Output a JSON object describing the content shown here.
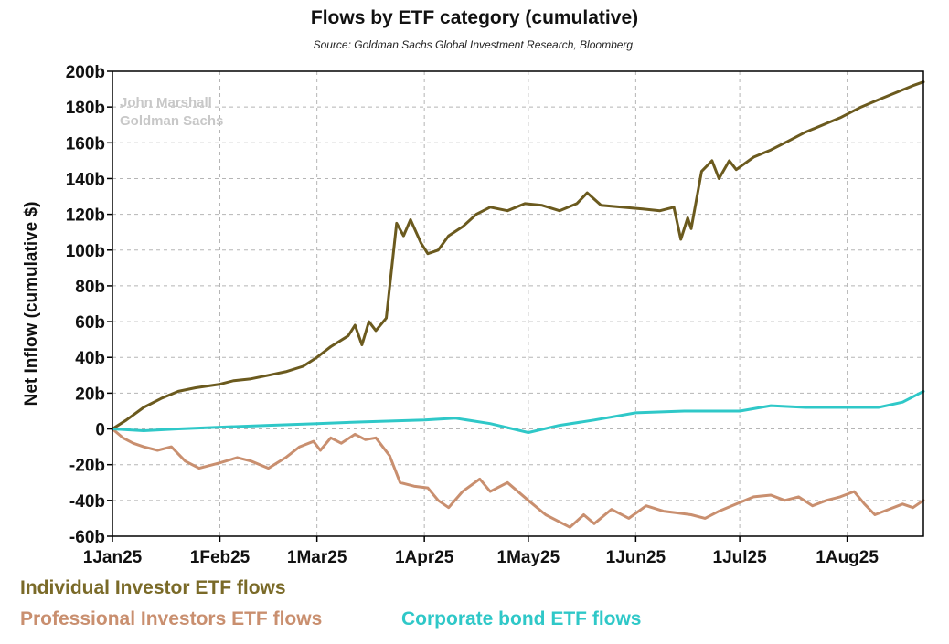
{
  "chart_data": {
    "type": "line",
    "title": "Flows by ETF category (cumulative)",
    "subtitle": "Source: Goldman Sachs Global Investment Research, Bloomberg.",
    "ylabel": "Net Inflow (cumulative $)",
    "xlabel": "",
    "watermark": [
      "John Marshall",
      "Goldman Sachs"
    ],
    "x_ticks": [
      "1Jan25",
      "1Feb25",
      "1Mar25",
      "1Apr25",
      "1May25",
      "1Jun25",
      "1Jul25",
      "1Aug25"
    ],
    "y_ticks": [
      "200b",
      "180b",
      "160b",
      "140b",
      "120b",
      "100b",
      "80b",
      "60b",
      "40b",
      "20b",
      "0",
      "-20b",
      "-40b",
      "-60b"
    ],
    "ylim": [
      -60,
      200
    ],
    "y_units": "billions of $",
    "xlim": [
      "2025-01-01",
      "2025-08-23"
    ],
    "grid": true,
    "legend_position": "bottom",
    "series": [
      {
        "name": "Individual Investor ETF flows",
        "color": "#6b5a1e",
        "points": [
          [
            "2025-01-01",
            0
          ],
          [
            "2025-01-05",
            5
          ],
          [
            "2025-01-10",
            12
          ],
          [
            "2025-01-15",
            17
          ],
          [
            "2025-01-20",
            21
          ],
          [
            "2025-01-25",
            23
          ],
          [
            "2025-02-01",
            25
          ],
          [
            "2025-02-05",
            27
          ],
          [
            "2025-02-10",
            28
          ],
          [
            "2025-02-15",
            30
          ],
          [
            "2025-02-20",
            32
          ],
          [
            "2025-02-25",
            35
          ],
          [
            "2025-03-01",
            40
          ],
          [
            "2025-03-05",
            46
          ],
          [
            "2025-03-10",
            52
          ],
          [
            "2025-03-12",
            58
          ],
          [
            "2025-03-14",
            47
          ],
          [
            "2025-03-16",
            60
          ],
          [
            "2025-03-18",
            55
          ],
          [
            "2025-03-21",
            62
          ],
          [
            "2025-03-24",
            115
          ],
          [
            "2025-03-26",
            108
          ],
          [
            "2025-03-28",
            117
          ],
          [
            "2025-03-31",
            104
          ],
          [
            "2025-04-02",
            98
          ],
          [
            "2025-04-05",
            100
          ],
          [
            "2025-04-08",
            108
          ],
          [
            "2025-04-12",
            113
          ],
          [
            "2025-04-16",
            120
          ],
          [
            "2025-04-20",
            124
          ],
          [
            "2025-04-25",
            122
          ],
          [
            "2025-04-30",
            126
          ],
          [
            "2025-05-05",
            125
          ],
          [
            "2025-05-10",
            122
          ],
          [
            "2025-05-15",
            126
          ],
          [
            "2025-05-18",
            132
          ],
          [
            "2025-05-22",
            125
          ],
          [
            "2025-05-28",
            124
          ],
          [
            "2025-06-03",
            123
          ],
          [
            "2025-06-08",
            122
          ],
          [
            "2025-06-12",
            124
          ],
          [
            "2025-06-14",
            106
          ],
          [
            "2025-06-16",
            118
          ],
          [
            "2025-06-17",
            112
          ],
          [
            "2025-06-20",
            144
          ],
          [
            "2025-06-23",
            150
          ],
          [
            "2025-06-25",
            140
          ],
          [
            "2025-06-28",
            150
          ],
          [
            "2025-06-30",
            145
          ],
          [
            "2025-07-05",
            152
          ],
          [
            "2025-07-10",
            156
          ],
          [
            "2025-07-15",
            161
          ],
          [
            "2025-07-20",
            166
          ],
          [
            "2025-07-25",
            170
          ],
          [
            "2025-07-30",
            174
          ],
          [
            "2025-08-05",
            180
          ],
          [
            "2025-08-10",
            184
          ],
          [
            "2025-08-15",
            188
          ],
          [
            "2025-08-20",
            192
          ],
          [
            "2025-08-23",
            194
          ]
        ]
      },
      {
        "name": "Professional Investors ETF flows",
        "color": "#c98f6f",
        "points": [
          [
            "2025-01-01",
            0
          ],
          [
            "2025-01-04",
            -5
          ],
          [
            "2025-01-07",
            -8
          ],
          [
            "2025-01-10",
            -10
          ],
          [
            "2025-01-14",
            -12
          ],
          [
            "2025-01-18",
            -10
          ],
          [
            "2025-01-22",
            -18
          ],
          [
            "2025-01-26",
            -22
          ],
          [
            "2025-02-01",
            -19
          ],
          [
            "2025-02-06",
            -16
          ],
          [
            "2025-02-10",
            -18
          ],
          [
            "2025-02-15",
            -22
          ],
          [
            "2025-02-20",
            -16
          ],
          [
            "2025-02-24",
            -10
          ],
          [
            "2025-02-28",
            -7
          ],
          [
            "2025-03-02",
            -12
          ],
          [
            "2025-03-05",
            -5
          ],
          [
            "2025-03-08",
            -8
          ],
          [
            "2025-03-12",
            -3
          ],
          [
            "2025-03-15",
            -6
          ],
          [
            "2025-03-18",
            -5
          ],
          [
            "2025-03-22",
            -15
          ],
          [
            "2025-03-25",
            -30
          ],
          [
            "2025-03-29",
            -32
          ],
          [
            "2025-04-02",
            -33
          ],
          [
            "2025-04-05",
            -40
          ],
          [
            "2025-04-08",
            -44
          ],
          [
            "2025-04-12",
            -35
          ],
          [
            "2025-04-17",
            -28
          ],
          [
            "2025-04-20",
            -35
          ],
          [
            "2025-04-25",
            -30
          ],
          [
            "2025-05-01",
            -40
          ],
          [
            "2025-05-06",
            -48
          ],
          [
            "2025-05-10",
            -52
          ],
          [
            "2025-05-13",
            -55
          ],
          [
            "2025-05-17",
            -48
          ],
          [
            "2025-05-20",
            -53
          ],
          [
            "2025-05-25",
            -45
          ],
          [
            "2025-05-30",
            -50
          ],
          [
            "2025-06-04",
            -43
          ],
          [
            "2025-06-09",
            -46
          ],
          [
            "2025-06-13",
            -47
          ],
          [
            "2025-06-17",
            -48
          ],
          [
            "2025-06-21",
            -50
          ],
          [
            "2025-06-25",
            -46
          ],
          [
            "2025-06-30",
            -42
          ],
          [
            "2025-07-05",
            -38
          ],
          [
            "2025-07-10",
            -37
          ],
          [
            "2025-07-14",
            -40
          ],
          [
            "2025-07-18",
            -38
          ],
          [
            "2025-07-22",
            -43
          ],
          [
            "2025-07-26",
            -40
          ],
          [
            "2025-07-30",
            -38
          ],
          [
            "2025-08-03",
            -35
          ],
          [
            "2025-08-06",
            -42
          ],
          [
            "2025-08-09",
            -48
          ],
          [
            "2025-08-13",
            -45
          ],
          [
            "2025-08-17",
            -42
          ],
          [
            "2025-08-20",
            -44
          ],
          [
            "2025-08-23",
            -40
          ]
        ]
      },
      {
        "name": "Corporate bond ETF flows",
        "color": "#2fc8c8",
        "points": [
          [
            "2025-01-01",
            0
          ],
          [
            "2025-01-10",
            -1
          ],
          [
            "2025-01-20",
            0
          ],
          [
            "2025-02-01",
            1
          ],
          [
            "2025-02-15",
            2
          ],
          [
            "2025-03-01",
            3
          ],
          [
            "2025-03-15",
            4
          ],
          [
            "2025-04-01",
            5
          ],
          [
            "2025-04-10",
            6
          ],
          [
            "2025-04-20",
            3
          ],
          [
            "2025-05-01",
            -2
          ],
          [
            "2025-05-10",
            2
          ],
          [
            "2025-05-20",
            5
          ],
          [
            "2025-06-01",
            9
          ],
          [
            "2025-06-15",
            10
          ],
          [
            "2025-07-01",
            10
          ],
          [
            "2025-07-10",
            13
          ],
          [
            "2025-07-20",
            12
          ],
          [
            "2025-08-01",
            12
          ],
          [
            "2025-08-10",
            12
          ],
          [
            "2025-08-17",
            15
          ],
          [
            "2025-08-23",
            21
          ]
        ]
      }
    ]
  }
}
